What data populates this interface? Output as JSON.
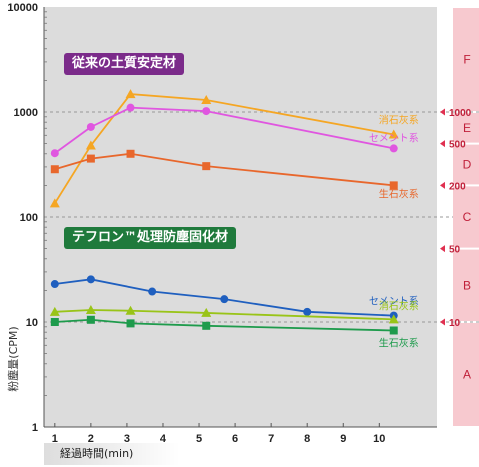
{
  "chart_data": {
    "type": "line",
    "title": "",
    "xlabel": "経過時間(min)",
    "ylabel": "粉塵量(CPM)",
    "xlim": [
      0.7,
      11.6
    ],
    "ylim": [
      1,
      10000
    ],
    "yscale": "log",
    "x_ticks": [
      1,
      2,
      3,
      4,
      5,
      6,
      7,
      8,
      9,
      10
    ],
    "y_ticks": [
      "1",
      "10",
      "100",
      "1000",
      "10000"
    ],
    "y_tick_values": [
      1,
      10,
      100,
      1000,
      10000
    ],
    "grid": "horizontal dashed at 10, 100, 1000",
    "groups": [
      {
        "title": "従来の土質安定材",
        "color": "#7b2b8a"
      },
      {
        "title": "テフロン™処理防塵固化材",
        "color": "#1f7a3c"
      }
    ],
    "series": [
      {
        "name": "消石灰系",
        "color": "#f5a623",
        "marker": "triangle",
        "x": [
          1,
          2,
          3.1,
          5.2,
          10.4
        ],
        "y": [
          135,
          480,
          1480,
          1300,
          610
        ]
      },
      {
        "name": "セメント系",
        "color": "#e056e0",
        "marker": "circle",
        "x": [
          1,
          2,
          3.1,
          5.2,
          10.4
        ],
        "y": [
          405,
          720,
          1100,
          1020,
          450
        ]
      },
      {
        "name": "生石灰系",
        "color": "#e8672c",
        "marker": "square",
        "x": [
          1,
          2,
          3.1,
          5.2,
          10.4
        ],
        "y": [
          285,
          360,
          400,
          305,
          200
        ]
      },
      {
        "name": "セメント系",
        "color": "#1f5fbf",
        "marker": "circle",
        "x": [
          1,
          2,
          3.7,
          5.7,
          8,
          10.4
        ],
        "y": [
          23,
          25.5,
          19.5,
          16.5,
          12.5,
          11.5
        ]
      },
      {
        "name": "消石灰系",
        "color": "#99c418",
        "marker": "triangle",
        "x": [
          1,
          2,
          3.1,
          5.2,
          10.4
        ],
        "y": [
          12.5,
          13,
          12.8,
          12.2,
          10.6
        ]
      },
      {
        "name": "生石灰系",
        "color": "#1e9b4c",
        "marker": "square",
        "x": [
          1,
          2,
          3.1,
          5.2,
          10.4
        ],
        "y": [
          10,
          10.5,
          9.7,
          9.2,
          8.3
        ]
      }
    ],
    "classes": [
      {
        "label": "F",
        "from": 1000,
        "to": 10000
      },
      {
        "label": "E",
        "from": 500,
        "to": 1000
      },
      {
        "label": "D",
        "from": 200,
        "to": 500
      },
      {
        "label": "C",
        "from": 50,
        "to": 200
      },
      {
        "label": "B",
        "from": 10,
        "to": 50
      },
      {
        "label": "A",
        "from": 1,
        "to": 10
      }
    ],
    "reference_marks": [
      {
        "label": "1000",
        "value": 1000
      },
      {
        "label": "500",
        "value": 500
      },
      {
        "label": "200",
        "value": 200
      },
      {
        "label": "50",
        "value": 50
      },
      {
        "label": "10",
        "value": 10
      }
    ]
  }
}
